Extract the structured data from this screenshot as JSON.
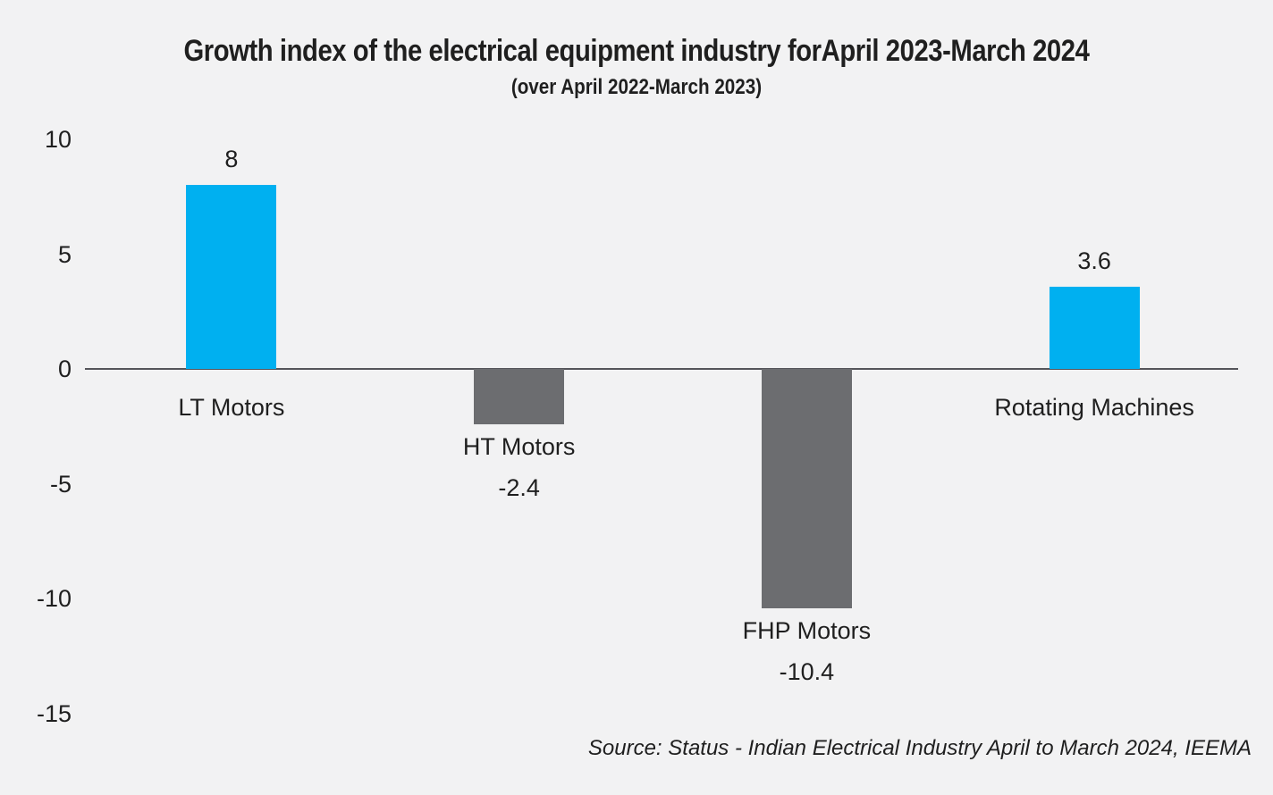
{
  "chart_data": {
    "type": "bar",
    "title": "Growth index of the electrical equipment industry forApril 2023-March 2024",
    "subtitle": "(over April 2022-March 2023)",
    "source": "Source: Status - Indian Electrical Industry April to March 2024, IEEMA",
    "categories": [
      "LT Motors",
      "HT Motors",
      "FHP Motors",
      "Rotating Machines"
    ],
    "values": [
      8,
      -2.4,
      -10.4,
      3.6
    ],
    "value_labels": [
      "8",
      "-2.4",
      "-10.4",
      "3.6"
    ],
    "bar_colors": [
      "#00B0F0",
      "#6C6D70",
      "#6C6D70",
      "#00B0F0"
    ],
    "yticks": [
      10,
      5,
      0,
      -5,
      -10,
      -15
    ],
    "ylim": [
      -15,
      10
    ],
    "xlabel": "",
    "ylabel": "",
    "grid": false,
    "legend": "none",
    "colors": {
      "positive_bar": "#00B0F0",
      "negative_bar": "#6C6D70",
      "axis_line": "#55555A",
      "text": "#1F1F1F",
      "background": "#F2F2F3"
    }
  }
}
